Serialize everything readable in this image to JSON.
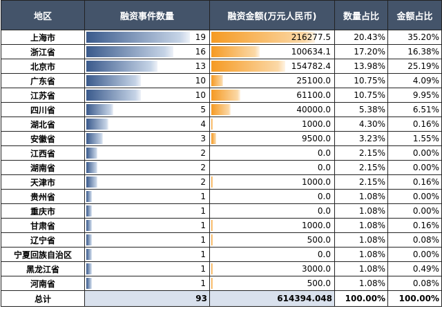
{
  "headers": [
    "地区",
    "融资事件数量",
    "融资金额(万元人民币)",
    "数量占比",
    "金额占比"
  ],
  "rows": [
    {
      "region": "上海市",
      "count": 19,
      "amount": "216277.5",
      "count_pct": "20.43%",
      "amount_pct": "35.20%",
      "count_ratio": 1.0,
      "amount_ratio": 1.0
    },
    {
      "region": "浙江省",
      "count": 16,
      "amount": "100634.1",
      "count_pct": "17.20%",
      "amount_pct": "16.38%",
      "count_ratio": 0.842,
      "amount_ratio": 0.465
    },
    {
      "region": "北京市",
      "count": 13,
      "amount": "154782.4",
      "count_pct": "13.98%",
      "amount_pct": "25.19%",
      "count_ratio": 0.684,
      "amount_ratio": 0.716
    },
    {
      "region": "广东省",
      "count": 10,
      "amount": "25100.0",
      "count_pct": "10.75%",
      "amount_pct": "4.09%",
      "count_ratio": 0.526,
      "amount_ratio": 0.116
    },
    {
      "region": "江苏省",
      "count": 10,
      "amount": "61100.0",
      "count_pct": "10.75%",
      "amount_pct": "9.95%",
      "count_ratio": 0.526,
      "amount_ratio": 0.283
    },
    {
      "region": "四川省",
      "count": 5,
      "amount": "40000.0",
      "count_pct": "5.38%",
      "amount_pct": "6.51%",
      "count_ratio": 0.263,
      "amount_ratio": 0.185
    },
    {
      "region": "湖北省",
      "count": 4,
      "amount": "1000.0",
      "count_pct": "4.30%",
      "amount_pct": "0.16%",
      "count_ratio": 0.211,
      "amount_ratio": 0.0046
    },
    {
      "region": "安徽省",
      "count": 3,
      "amount": "9500.0",
      "count_pct": "3.23%",
      "amount_pct": "1.55%",
      "count_ratio": 0.158,
      "amount_ratio": 0.044
    },
    {
      "region": "江西省",
      "count": 2,
      "amount": "0.0",
      "count_pct": "2.15%",
      "amount_pct": "0.00%",
      "count_ratio": 0.105,
      "amount_ratio": 0
    },
    {
      "region": "湖南省",
      "count": 2,
      "amount": "0.0",
      "count_pct": "2.15%",
      "amount_pct": "0.00%",
      "count_ratio": 0.105,
      "amount_ratio": 0
    },
    {
      "region": "天津市",
      "count": 2,
      "amount": "1000.0",
      "count_pct": "2.15%",
      "amount_pct": "0.16%",
      "count_ratio": 0.105,
      "amount_ratio": 0.0046
    },
    {
      "region": "贵州省",
      "count": 1,
      "amount": "0.0",
      "count_pct": "1.08%",
      "amount_pct": "0.00%",
      "count_ratio": 0.053,
      "amount_ratio": 0
    },
    {
      "region": "重庆市",
      "count": 1,
      "amount": "0.0",
      "count_pct": "1.08%",
      "amount_pct": "0.00%",
      "count_ratio": 0.053,
      "amount_ratio": 0
    },
    {
      "region": "甘肃省",
      "count": 1,
      "amount": "1000.0",
      "count_pct": "1.08%",
      "amount_pct": "0.16%",
      "count_ratio": 0.053,
      "amount_ratio": 0.0046
    },
    {
      "region": "辽宁省",
      "count": 1,
      "amount": "500.0",
      "count_pct": "1.08%",
      "amount_pct": "0.08%",
      "count_ratio": 0.053,
      "amount_ratio": 0.0023
    },
    {
      "region": "宁夏回族自治区",
      "count": 1,
      "amount": "0.0",
      "count_pct": "1.08%",
      "amount_pct": "0.00%",
      "count_ratio": 0.053,
      "amount_ratio": 0
    },
    {
      "region": "黑龙江省",
      "count": 1,
      "amount": "3000.0",
      "count_pct": "1.08%",
      "amount_pct": "0.49%",
      "count_ratio": 0.053,
      "amount_ratio": 0.014
    },
    {
      "region": "河南省",
      "count": 1,
      "amount": "500.0",
      "count_pct": "1.08%",
      "amount_pct": "0.08%",
      "count_ratio": 0.053,
      "amount_ratio": 0.0023
    }
  ],
  "total": {
    "label": "总计",
    "count": "93",
    "amount": "614394.048",
    "count_pct": "100.00%",
    "amount_pct": "100.00%"
  },
  "colors": {
    "header_bg": "#44546a",
    "count_bar": "#3a5a8c",
    "amount_bar": "#f59a23",
    "total_bg": "#d9e1ed"
  }
}
